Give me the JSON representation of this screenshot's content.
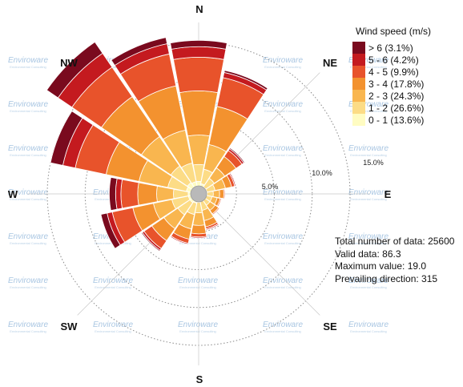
{
  "chart_data": {
    "type": "windrose",
    "directions": [
      "N",
      "NNE",
      "NE",
      "ENE",
      "E",
      "ESE",
      "SE",
      "SSE",
      "S",
      "SSW",
      "SW",
      "WSW",
      "W",
      "WNW",
      "NW",
      "NNW"
    ],
    "compass_labels": [
      "N",
      "NE",
      "E",
      "SE",
      "S",
      "SW",
      "W",
      "NW"
    ],
    "ring_labels": [
      "5.0%",
      "10.0%",
      "15.0%"
    ],
    "radial_max_pct": 16,
    "legend": {
      "title": "Wind speed (m/s)",
      "bins": [
        {
          "label": "> 6 (3.1%)",
          "color": "#7a0a1e"
        },
        {
          "label": "5 - 6 (4.2%)",
          "color": "#c41a1f"
        },
        {
          "label": "4 - 5 (9.9%)",
          "color": "#e8532b"
        },
        {
          "label": "3 - 4 (17.8%)",
          "color": "#f3922f"
        },
        {
          "label": "2 - 3 (24.3%)",
          "color": "#f9b64f"
        },
        {
          "label": "1 - 2 (26.6%)",
          "color": "#fcdc86"
        },
        {
          "label": "0 - 1 (13.6%)",
          "color": "#fffcc2"
        }
      ]
    },
    "cumulative_pct_by_direction": [
      [
        1.2,
        2.8,
        5.6,
        9.8,
        13.0,
        14.0,
        14.6
      ],
      [
        1.0,
        2.4,
        4.8,
        8.5,
        11.3,
        11.8,
        12.0
      ],
      [
        0.8,
        1.8,
        3.0,
        4.3,
        5.0,
        5.2,
        5.3
      ],
      [
        0.8,
        1.6,
        2.6,
        3.2,
        3.5,
        3.6,
        3.6
      ],
      [
        0.8,
        1.4,
        2.0,
        2.4,
        2.5,
        2.5,
        2.5
      ],
      [
        0.7,
        1.3,
        1.8,
        2.1,
        2.2,
        2.2,
        2.2
      ],
      [
        0.7,
        1.3,
        1.9,
        2.3,
        2.4,
        2.4,
        2.4
      ],
      [
        0.7,
        1.6,
        2.6,
        3.2,
        3.4,
        3.5,
        3.5
      ],
      [
        0.8,
        1.8,
        3.0,
        3.8,
        4.1,
        4.2,
        4.2
      ],
      [
        0.9,
        2.0,
        3.4,
        4.4,
        4.8,
        4.9,
        4.9
      ],
      [
        1.0,
        2.4,
        4.0,
        5.4,
        6.3,
        6.5,
        6.6
      ],
      [
        1.0,
        2.6,
        4.4,
        6.4,
        8.4,
        8.9,
        9.5
      ],
      [
        1.0,
        2.4,
        4.0,
        5.8,
        7.4,
        7.9,
        8.5
      ],
      [
        1.2,
        3.0,
        5.8,
        9.0,
        12.0,
        13.2,
        14.4
      ],
      [
        1.3,
        3.2,
        6.6,
        11.2,
        14.6,
        16.2,
        17.5
      ],
      [
        1.2,
        3.0,
        6.2,
        10.5,
        13.6,
        14.6,
        15.2
      ]
    ],
    "stats": {
      "total": "Total number of data: 25600",
      "valid": "Valid data: 86.3",
      "max": "Maximum value: 19.0",
      "prevailing": "Prevailing direction: 315"
    },
    "watermark": {
      "brand": "Enviroware",
      "sub": "Environmental Consulting"
    }
  }
}
